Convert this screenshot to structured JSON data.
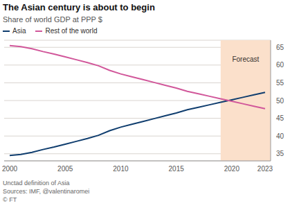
{
  "chart_data": {
    "type": "line",
    "title": "The Asian century is about to begin",
    "subtitle": "Share of world GDP at PPP $",
    "x": [
      2000,
      2001,
      2002,
      2003,
      2004,
      2005,
      2006,
      2007,
      2008,
      2009,
      2010,
      2011,
      2012,
      2013,
      2014,
      2015,
      2016,
      2017,
      2018,
      2019,
      2020,
      2021,
      2022,
      2023
    ],
    "series": [
      {
        "name": "Asia",
        "color": "#0f3d6e",
        "values": [
          34.5,
          34.8,
          35.4,
          36.2,
          36.9,
          37.7,
          38.5,
          39.3,
          40.2,
          41.5,
          42.5,
          43.3,
          44.1,
          44.9,
          45.7,
          46.5,
          47.4,
          48.1,
          48.8,
          49.5,
          50.2,
          50.9,
          51.6,
          52.3
        ]
      },
      {
        "name": "Rest of the world",
        "color": "#d1579a",
        "values": [
          65.5,
          65.2,
          64.6,
          63.8,
          63.1,
          62.3,
          61.5,
          60.7,
          59.8,
          58.5,
          57.5,
          56.7,
          55.9,
          55.1,
          54.3,
          53.5,
          52.6,
          51.9,
          51.2,
          50.5,
          49.8,
          49.1,
          48.4,
          47.7
        ]
      }
    ],
    "xlim": [
      1999.5,
      2023.5
    ],
    "xticks": [
      2000,
      2005,
      2010,
      2015,
      2020,
      2023
    ],
    "ylim": [
      33,
      67
    ],
    "yticks": [
      35,
      40,
      45,
      50,
      55,
      60,
      65
    ],
    "grid": true,
    "legend": "top-left",
    "forecast": {
      "x": [
        2019,
        2023.5
      ],
      "label": "Forecast",
      "color": "#fbe0cb"
    },
    "notes": [
      "Unctad definition of Asia",
      "Sources: IMF, @valentinaromei",
      "© FT"
    ]
  }
}
